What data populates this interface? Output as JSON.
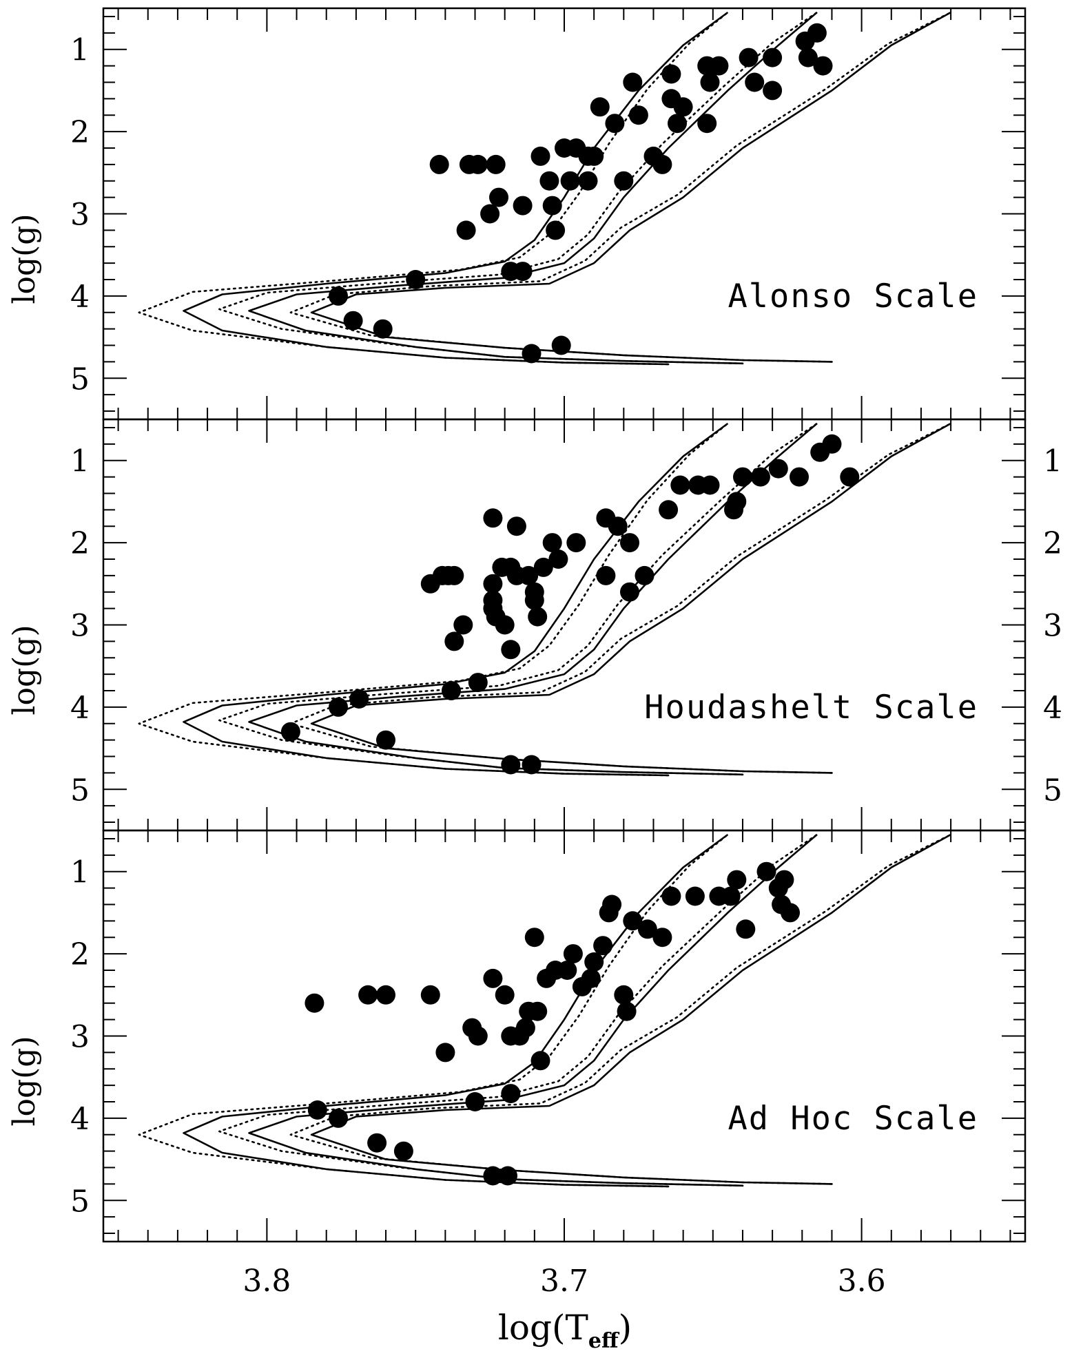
{
  "chart_data": {
    "type": "scatter",
    "xlabel": "log(T",
    "xlabel_sub": "eff",
    "xlabel_close": ")",
    "xlim": [
      3.855,
      3.545
    ],
    "x_ticks": [
      "3.8",
      "3.7",
      "3.6"
    ],
    "x_tick_values": [
      3.8,
      3.7,
      3.6
    ],
    "ylabel": "log(g)",
    "ylim": [
      0.5,
      5.5
    ],
    "y_ticks": [
      "1",
      "2",
      "3",
      "4",
      "5"
    ],
    "y_tick_values": [
      1,
      2,
      3,
      4,
      5
    ],
    "right_y_ticks": [
      "1",
      "2",
      "3",
      "4",
      "5"
    ],
    "isochrones": [
      {
        "name": "isochrone-1",
        "style": "solid",
        "points": [
          [
            3.665,
            4.83
          ],
          [
            3.7,
            4.81
          ],
          [
            3.74,
            4.75
          ],
          [
            3.78,
            4.62
          ],
          [
            3.815,
            4.42
          ],
          [
            3.828,
            4.18
          ],
          [
            3.815,
            3.98
          ],
          [
            3.78,
            3.85
          ],
          [
            3.74,
            3.72
          ],
          [
            3.72,
            3.58
          ],
          [
            3.71,
            3.32
          ],
          [
            3.7,
            2.8
          ],
          [
            3.69,
            2.2
          ],
          [
            3.675,
            1.5
          ],
          [
            3.66,
            0.95
          ],
          [
            3.645,
            0.55
          ]
        ]
      },
      {
        "name": "isochrone-1-alt",
        "style": "dotted",
        "points": [
          [
            3.665,
            4.83
          ],
          [
            3.7,
            4.81
          ],
          [
            3.74,
            4.75
          ],
          [
            3.78,
            4.62
          ],
          [
            3.825,
            4.42
          ],
          [
            3.843,
            4.2
          ],
          [
            3.825,
            3.95
          ],
          [
            3.78,
            3.82
          ],
          [
            3.735,
            3.68
          ],
          [
            3.715,
            3.53
          ],
          [
            3.705,
            3.25
          ],
          [
            3.695,
            2.75
          ],
          [
            3.685,
            2.15
          ],
          [
            3.672,
            1.48
          ],
          [
            3.658,
            0.93
          ],
          [
            3.645,
            0.55
          ]
        ]
      },
      {
        "name": "isochrone-2",
        "style": "solid",
        "points": [
          [
            3.64,
            4.82
          ],
          [
            3.68,
            4.79
          ],
          [
            3.72,
            4.74
          ],
          [
            3.75,
            4.62
          ],
          [
            3.787,
            4.42
          ],
          [
            3.806,
            4.18
          ],
          [
            3.79,
            3.98
          ],
          [
            3.755,
            3.87
          ],
          [
            3.72,
            3.78
          ],
          [
            3.7,
            3.6
          ],
          [
            3.69,
            3.3
          ],
          [
            3.68,
            2.8
          ],
          [
            3.665,
            2.2
          ],
          [
            3.645,
            1.5
          ],
          [
            3.628,
            0.95
          ],
          [
            3.615,
            0.55
          ]
        ]
      },
      {
        "name": "isochrone-2-alt",
        "style": "dotted",
        "points": [
          [
            3.64,
            4.82
          ],
          [
            3.68,
            4.79
          ],
          [
            3.72,
            4.74
          ],
          [
            3.755,
            4.6
          ],
          [
            3.795,
            4.4
          ],
          [
            3.816,
            4.16
          ],
          [
            3.8,
            3.96
          ],
          [
            3.76,
            3.84
          ],
          [
            3.722,
            3.74
          ],
          [
            3.702,
            3.55
          ],
          [
            3.692,
            3.25
          ],
          [
            3.682,
            2.75
          ],
          [
            3.667,
            2.15
          ],
          [
            3.647,
            1.47
          ],
          [
            3.63,
            0.92
          ],
          [
            3.615,
            0.55
          ]
        ]
      },
      {
        "name": "isochrone-3",
        "style": "solid",
        "points": [
          [
            3.61,
            4.8
          ],
          [
            3.64,
            4.78
          ],
          [
            3.68,
            4.72
          ],
          [
            3.72,
            4.63
          ],
          [
            3.76,
            4.5
          ],
          [
            3.785,
            4.2
          ],
          [
            3.77,
            3.98
          ],
          [
            3.74,
            3.9
          ],
          [
            3.705,
            3.85
          ],
          [
            3.69,
            3.6
          ],
          [
            3.678,
            3.2
          ],
          [
            3.66,
            2.8
          ],
          [
            3.64,
            2.2
          ],
          [
            3.61,
            1.5
          ],
          [
            3.59,
            0.95
          ],
          [
            3.57,
            0.55
          ]
        ]
      },
      {
        "name": "isochrone-3-alt",
        "style": "dotted",
        "points": [
          [
            3.61,
            4.8
          ],
          [
            3.64,
            4.78
          ],
          [
            3.68,
            4.72
          ],
          [
            3.72,
            4.63
          ],
          [
            3.765,
            4.48
          ],
          [
            3.792,
            4.2
          ],
          [
            3.777,
            3.98
          ],
          [
            3.745,
            3.88
          ],
          [
            3.708,
            3.82
          ],
          [
            3.693,
            3.57
          ],
          [
            3.681,
            3.17
          ],
          [
            3.662,
            2.77
          ],
          [
            3.642,
            2.17
          ],
          [
            3.612,
            1.48
          ],
          [
            3.591,
            0.93
          ],
          [
            3.57,
            0.55
          ]
        ]
      }
    ],
    "panels": [
      {
        "name": "panel-alonso",
        "label": "Alonso Scale",
        "show_right_ticks": false,
        "points": [
          [
            3.742,
            2.4
          ],
          [
            3.732,
            2.4
          ],
          [
            3.729,
            2.4
          ],
          [
            3.723,
            2.4
          ],
          [
            3.722,
            2.8
          ],
          [
            3.725,
            3.0
          ],
          [
            3.733,
            3.2
          ],
          [
            3.75,
            3.8
          ],
          [
            3.776,
            4.0
          ],
          [
            3.771,
            4.3
          ],
          [
            3.761,
            4.4
          ],
          [
            3.718,
            3.7
          ],
          [
            3.714,
            3.7
          ],
          [
            3.714,
            2.9
          ],
          [
            3.711,
            4.7
          ],
          [
            3.701,
            4.6
          ],
          [
            3.708,
            2.3
          ],
          [
            3.705,
            2.6
          ],
          [
            3.704,
            2.9
          ],
          [
            3.703,
            3.2
          ],
          [
            3.7,
            2.2
          ],
          [
            3.698,
            2.6
          ],
          [
            3.696,
            2.2
          ],
          [
            3.692,
            2.6
          ],
          [
            3.692,
            2.3
          ],
          [
            3.69,
            2.3
          ],
          [
            3.688,
            1.7
          ],
          [
            3.683,
            1.9
          ],
          [
            3.677,
            1.4
          ],
          [
            3.675,
            1.8
          ],
          [
            3.68,
            2.6
          ],
          [
            3.67,
            2.3
          ],
          [
            3.667,
            2.4
          ],
          [
            3.664,
            1.6
          ],
          [
            3.66,
            1.7
          ],
          [
            3.662,
            1.9
          ],
          [
            3.664,
            1.3
          ],
          [
            3.652,
            1.2
          ],
          [
            3.648,
            1.2
          ],
          [
            3.651,
            1.4
          ],
          [
            3.652,
            1.9
          ],
          [
            3.638,
            1.1
          ],
          [
            3.636,
            1.4
          ],
          [
            3.63,
            1.1
          ],
          [
            3.63,
            1.5
          ],
          [
            3.618,
            1.1
          ],
          [
            3.613,
            1.2
          ],
          [
            3.619,
            0.9
          ],
          [
            3.615,
            0.8
          ]
        ]
      },
      {
        "name": "panel-houdashelt",
        "label": "Houdashelt Scale",
        "show_right_ticks": true,
        "points": [
          [
            3.745,
            2.5
          ],
          [
            3.741,
            2.4
          ],
          [
            3.739,
            2.4
          ],
          [
            3.737,
            2.4
          ],
          [
            3.724,
            1.7
          ],
          [
            3.716,
            1.8
          ],
          [
            3.734,
            3.0
          ],
          [
            3.737,
            3.2
          ],
          [
            3.724,
            2.5
          ],
          [
            3.724,
            2.7
          ],
          [
            3.724,
            2.8
          ],
          [
            3.723,
            2.9
          ],
          [
            3.721,
            2.3
          ],
          [
            3.72,
            3.0
          ],
          [
            3.716,
            2.4
          ],
          [
            3.718,
            2.3
          ],
          [
            3.712,
            2.4
          ],
          [
            3.71,
            2.6
          ],
          [
            3.71,
            2.7
          ],
          [
            3.709,
            2.9
          ],
          [
            3.707,
            2.3
          ],
          [
            3.704,
            2.0
          ],
          [
            3.702,
            2.2
          ],
          [
            3.696,
            2.0
          ],
          [
            3.718,
            3.3
          ],
          [
            3.729,
            3.7
          ],
          [
            3.738,
            3.8
          ],
          [
            3.769,
            3.9
          ],
          [
            3.776,
            4.0
          ],
          [
            3.792,
            4.3
          ],
          [
            3.76,
            4.4
          ],
          [
            3.718,
            4.7
          ],
          [
            3.711,
            4.7
          ],
          [
            3.686,
            1.7
          ],
          [
            3.682,
            1.8
          ],
          [
            3.686,
            2.4
          ],
          [
            3.678,
            2.0
          ],
          [
            3.673,
            2.4
          ],
          [
            3.678,
            2.6
          ],
          [
            3.665,
            1.6
          ],
          [
            3.661,
            1.3
          ],
          [
            3.655,
            1.3
          ],
          [
            3.651,
            1.3
          ],
          [
            3.64,
            1.2
          ],
          [
            3.634,
            1.2
          ],
          [
            3.628,
            1.1
          ],
          [
            3.642,
            1.5
          ],
          [
            3.643,
            1.6
          ],
          [
            3.621,
            1.2
          ],
          [
            3.614,
            0.9
          ],
          [
            3.61,
            0.8
          ],
          [
            3.604,
            1.2
          ]
        ]
      },
      {
        "name": "panel-adhoc",
        "label": "Ad Hoc Scale",
        "show_right_ticks": false,
        "points": [
          [
            3.784,
            2.6
          ],
          [
            3.766,
            2.5
          ],
          [
            3.76,
            2.5
          ],
          [
            3.745,
            2.5
          ],
          [
            3.74,
            3.2
          ],
          [
            3.731,
            2.9
          ],
          [
            3.729,
            3.0
          ],
          [
            3.724,
            2.3
          ],
          [
            3.72,
            2.5
          ],
          [
            3.718,
            3.0
          ],
          [
            3.715,
            3.0
          ],
          [
            3.713,
            2.9
          ],
          [
            3.712,
            2.7
          ],
          [
            3.71,
            1.8
          ],
          [
            3.706,
            2.3
          ],
          [
            3.703,
            2.2
          ],
          [
            3.699,
            2.2
          ],
          [
            3.697,
            2.0
          ],
          [
            3.694,
            2.4
          ],
          [
            3.691,
            2.3
          ],
          [
            3.69,
            2.1
          ],
          [
            3.687,
            1.9
          ],
          [
            3.685,
            1.5
          ],
          [
            3.684,
            1.4
          ],
          [
            3.708,
            3.3
          ],
          [
            3.709,
            2.7
          ],
          [
            3.718,
            3.7
          ],
          [
            3.73,
            3.8
          ],
          [
            3.783,
            3.9
          ],
          [
            3.776,
            4.0
          ],
          [
            3.763,
            4.3
          ],
          [
            3.754,
            4.4
          ],
          [
            3.724,
            4.7
          ],
          [
            3.719,
            4.7
          ],
          [
            3.68,
            2.5
          ],
          [
            3.679,
            2.7
          ],
          [
            3.677,
            1.6
          ],
          [
            3.672,
            1.7
          ],
          [
            3.667,
            1.8
          ],
          [
            3.664,
            1.3
          ],
          [
            3.656,
            1.3
          ],
          [
            3.648,
            1.3
          ],
          [
            3.644,
            1.3
          ],
          [
            3.642,
            1.1
          ],
          [
            3.639,
            1.7
          ],
          [
            3.632,
            1.0
          ],
          [
            3.628,
            1.2
          ],
          [
            3.627,
            1.4
          ],
          [
            3.626,
            1.1
          ],
          [
            3.624,
            1.5
          ]
        ]
      }
    ]
  }
}
